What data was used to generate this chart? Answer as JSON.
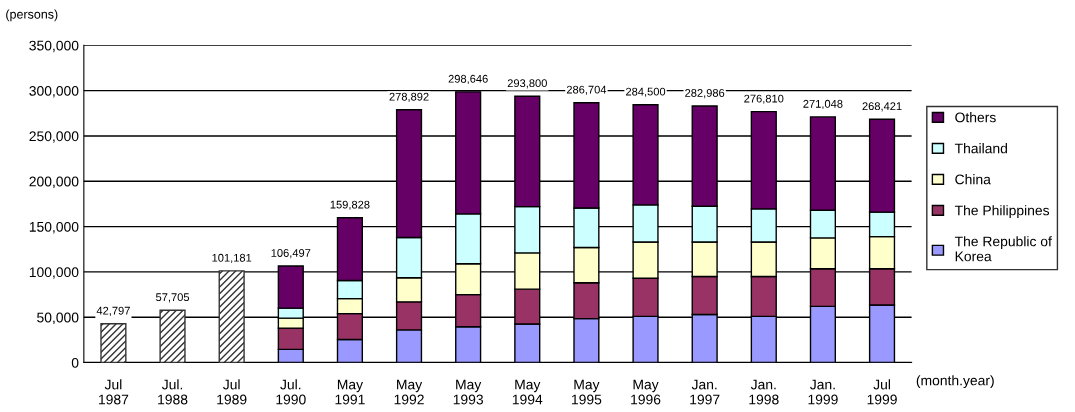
{
  "chart_data": {
    "type": "bar",
    "stacked": true,
    "ylabel": "(persons)",
    "xlabel": "(month.year)",
    "categories": [
      "Jul\n1987",
      "Jul.\n1988",
      "Jul\n1989",
      "Jul.\n1990",
      "May\n1991",
      "May\n1992",
      "May\n1993",
      "May\n1994",
      "May\n1995",
      "May\n1996",
      "Jan.\n1997",
      "Jan.\n1998",
      "Jan.\n1999",
      "Jul\n1999"
    ],
    "series": [
      {
        "color": "#333333",
        "values": [
          42797,
          57705,
          101181,
          null,
          null,
          null,
          null,
          null,
          null,
          null,
          null,
          null,
          null,
          null
        ]
      },
      {
        "name": "The Republic of\nKorea",
        "color": "#9999ff",
        "values": [
          null,
          null,
          null,
          14500,
          25500,
          36000,
          39500,
          42500,
          48500,
          51000,
          53000,
          51000,
          62000,
          63500
        ]
      },
      {
        "name": "The Philippines",
        "color": "#993366",
        "values": [
          null,
          null,
          null,
          23500,
          28500,
          31000,
          35500,
          38500,
          39500,
          42000,
          42000,
          44000,
          41500,
          40000
        ]
      },
      {
        "name": "China",
        "color": "#ffffcc",
        "values": [
          null,
          null,
          null,
          11000,
          16500,
          26500,
          34000,
          40000,
          39000,
          40000,
          38000,
          38000,
          34000,
          35500
        ]
      },
      {
        "name": "Thailand",
        "color": "#ccffff",
        "values": [
          null,
          null,
          null,
          11000,
          20000,
          44500,
          55000,
          51000,
          43500,
          41000,
          39500,
          36500,
          30500,
          27000
        ]
      },
      {
        "name": "Others",
        "color": "#660066",
        "values": [
          null,
          null,
          null,
          46497,
          69328,
          140892,
          134646,
          121800,
          116204,
          110500,
          110486,
          107310,
          103048,
          102421
        ]
      }
    ],
    "totals": [
      "42,797",
      "57,705",
      "101,181",
      "106,497",
      "159,828",
      "278,892",
      "298,646",
      "293,800",
      "286,704",
      "284,500",
      "282,986",
      "276,810",
      "271,048",
      "268,421"
    ],
    "ylim": [
      0,
      350000
    ],
    "yticks": [
      {
        "value": 0,
        "label": "0"
      },
      {
        "value": 50000,
        "label": "50,000"
      },
      {
        "value": 100000,
        "label": "100,000"
      },
      {
        "value": 150000,
        "label": "150,000"
      },
      {
        "value": 200000,
        "label": "200,000"
      },
      {
        "value": 250000,
        "label": "250,000"
      },
      {
        "value": 300000,
        "label": "300,000"
      },
      {
        "value": 350000,
        "label": "350,000"
      }
    ],
    "grid": "y",
    "legend": "right"
  }
}
